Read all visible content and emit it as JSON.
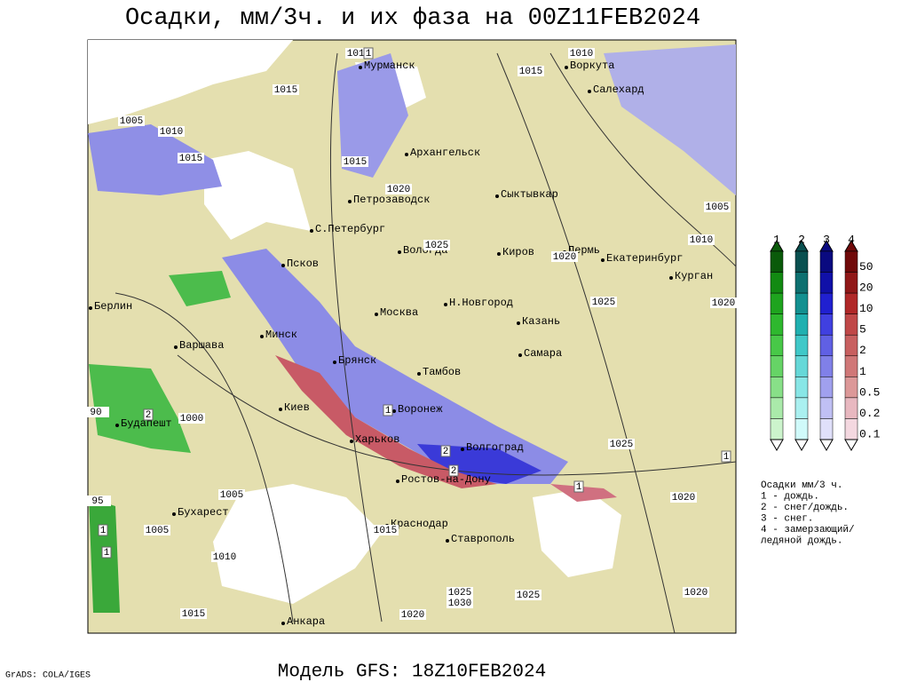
{
  "header": {
    "title": "Осадки, мм/3ч. и их фаза на 00Z11FEB2024"
  },
  "cities": [
    "Мурманск",
    "Воркута",
    "Салехард",
    "Архангельск",
    "Петрозаводск",
    "Сыктывкар",
    "С.Петербург",
    "Вологда",
    "Киров",
    "Пермь",
    "Екатеринбург",
    "Псков",
    "Курган",
    "Берлин",
    "Москва",
    "Н.Новгород",
    "Казань",
    "Минск",
    "Варшава",
    "Самара",
    "Брянск",
    "Тамбов",
    "Воронеж",
    "Киев",
    "Будапешт",
    "Харьков",
    "Волгоград",
    "Ростов-на-Дону",
    "Бухарест",
    "Краснодар",
    "Ставрополь",
    "Анкара"
  ],
  "isobar_labels": [
    1010,
    1015,
    1010,
    1015,
    1005,
    1010,
    1015,
    1015,
    1020,
    1025,
    1020,
    1005,
    1010,
    1025,
    1020,
    1025,
    1000,
    1005,
    1005,
    1010,
    1015,
    1020,
    1025,
    1030,
    1025,
    1020,
    1015,
    1020,
    90,
    95
  ],
  "phase_markers": [
    1,
    1,
    2,
    2,
    1,
    2,
    1,
    1,
    1
  ],
  "legend": {
    "columns": [
      1,
      2,
      3,
      4
    ],
    "scale": [
      50,
      20,
      10,
      5,
      2,
      1,
      0.5,
      0.2,
      0.1
    ],
    "notes": [
      "Осадки мм/3 ч.",
      "1 - дождь.",
      "2 - снег/дождь.",
      "3 - снег.",
      "4 - замерзающий/",
      "ледяной дождь."
    ]
  },
  "footer": {
    "model": "Модель GFS: 18Z10FEB2024",
    "credit": "GrADS: COLA/IGES"
  }
}
